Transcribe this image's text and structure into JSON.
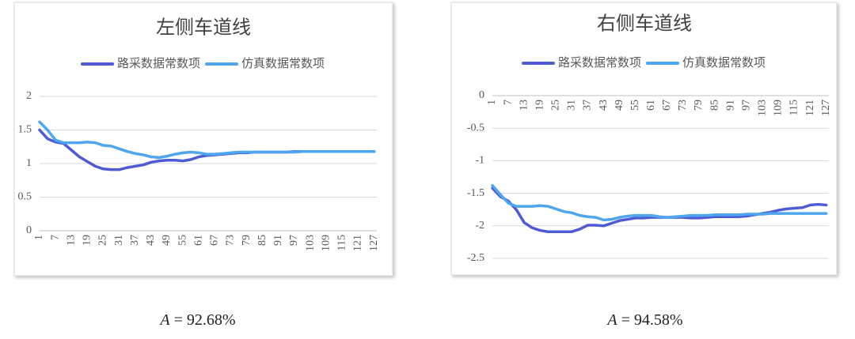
{
  "chart_data": [
    {
      "type": "line",
      "title": "左侧车道线",
      "x": [
        1,
        4,
        7,
        10,
        13,
        16,
        19,
        22,
        25,
        28,
        31,
        34,
        37,
        40,
        43,
        46,
        49,
        52,
        55,
        58,
        61,
        64,
        67,
        70,
        73,
        76,
        79,
        82,
        85,
        88,
        91,
        94,
        97,
        100,
        103,
        106,
        109,
        112,
        115,
        118,
        121,
        124,
        127
      ],
      "xlim": [
        1,
        128
      ],
      "xticks": [
        1,
        7,
        13,
        19,
        25,
        31,
        37,
        43,
        49,
        55,
        61,
        67,
        73,
        79,
        85,
        91,
        97,
        103,
        109,
        115,
        121,
        127
      ],
      "ylim": [
        0,
        2
      ],
      "yticks": [
        0,
        0.5,
        1,
        1.5,
        2
      ],
      "grid": true,
      "series": [
        {
          "name": "路采数据常数项",
          "color": "#4f5bd5",
          "values": [
            1.5,
            1.37,
            1.32,
            1.3,
            1.2,
            1.1,
            1.03,
            0.96,
            0.92,
            0.91,
            0.91,
            0.94,
            0.96,
            0.98,
            1.02,
            1.04,
            1.05,
            1.05,
            1.04,
            1.06,
            1.1,
            1.12,
            1.13,
            1.14,
            1.15,
            1.16,
            1.16,
            1.17,
            1.17,
            1.17,
            1.17,
            1.17,
            1.18,
            1.18,
            1.18,
            1.18,
            1.18,
            1.18,
            1.18,
            1.18,
            1.18,
            1.18,
            1.18
          ]
        },
        {
          "name": "仿真数据常数项",
          "color": "#4ea6ee",
          "values": [
            1.62,
            1.5,
            1.35,
            1.31,
            1.31,
            1.31,
            1.32,
            1.31,
            1.27,
            1.26,
            1.22,
            1.18,
            1.15,
            1.13,
            1.1,
            1.09,
            1.11,
            1.14,
            1.16,
            1.17,
            1.16,
            1.14,
            1.14,
            1.15,
            1.16,
            1.17,
            1.17,
            1.17,
            1.17,
            1.17,
            1.17,
            1.17,
            1.17,
            1.18,
            1.18,
            1.18,
            1.18,
            1.18,
            1.18,
            1.18,
            1.18,
            1.18,
            1.18
          ]
        }
      ]
    },
    {
      "type": "line",
      "title": "右侧车道线",
      "x": [
        1,
        4,
        7,
        10,
        13,
        16,
        19,
        22,
        25,
        28,
        31,
        34,
        37,
        40,
        43,
        46,
        49,
        52,
        55,
        58,
        61,
        64,
        67,
        70,
        73,
        76,
        79,
        82,
        85,
        88,
        91,
        94,
        97,
        100,
        103,
        106,
        109,
        112,
        115,
        118,
        121,
        124,
        127
      ],
      "xlim": [
        1,
        128
      ],
      "xticks": [
        1,
        7,
        13,
        19,
        25,
        31,
        37,
        43,
        49,
        55,
        61,
        67,
        73,
        79,
        85,
        91,
        97,
        103,
        109,
        115,
        121,
        127
      ],
      "ylim": [
        -2.5,
        0
      ],
      "yticks": [
        0,
        -0.5,
        -1,
        -1.5,
        -2,
        -2.5
      ],
      "grid": true,
      "series": [
        {
          "name": "路采数据常数项",
          "color": "#4f5bd5",
          "values": [
            -1.42,
            -1.55,
            -1.62,
            -1.75,
            -1.95,
            -2.03,
            -2.07,
            -2.09,
            -2.09,
            -2.09,
            -2.09,
            -2.05,
            -1.99,
            -1.99,
            -2.0,
            -1.96,
            -1.92,
            -1.9,
            -1.88,
            -1.88,
            -1.87,
            -1.87,
            -1.87,
            -1.87,
            -1.87,
            -1.88,
            -1.88,
            -1.87,
            -1.86,
            -1.86,
            -1.86,
            -1.86,
            -1.85,
            -1.83,
            -1.81,
            -1.79,
            -1.76,
            -1.74,
            -1.73,
            -1.72,
            -1.68,
            -1.67,
            -1.68
          ]
        },
        {
          "name": "仿真数据常数项",
          "color": "#4ea6ee",
          "values": [
            -1.38,
            -1.52,
            -1.65,
            -1.7,
            -1.7,
            -1.7,
            -1.69,
            -1.7,
            -1.74,
            -1.78,
            -1.8,
            -1.84,
            -1.86,
            -1.87,
            -1.91,
            -1.9,
            -1.87,
            -1.85,
            -1.84,
            -1.84,
            -1.84,
            -1.86,
            -1.87,
            -1.86,
            -1.85,
            -1.84,
            -1.84,
            -1.84,
            -1.83,
            -1.83,
            -1.83,
            -1.83,
            -1.82,
            -1.82,
            -1.82,
            -1.81,
            -1.81,
            -1.81,
            -1.81,
            -1.81,
            -1.81,
            -1.81,
            -1.81
          ]
        }
      ]
    }
  ],
  "captions": [
    {
      "symbol": "A",
      "text": "= 92.68%"
    },
    {
      "symbol": "A",
      "text": "= 94.58%"
    }
  ]
}
